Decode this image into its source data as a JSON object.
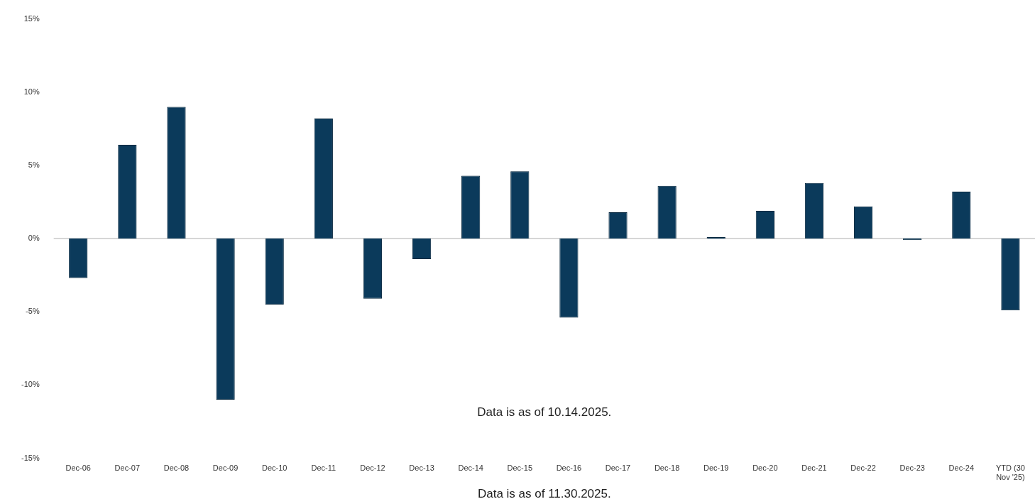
{
  "chart_data": {
    "type": "bar",
    "categories": [
      "Dec-06",
      "Dec-07",
      "Dec-08",
      "Dec-09",
      "Dec-10",
      "Dec-11",
      "Dec-12",
      "Dec-13",
      "Dec-14",
      "Dec-15",
      "Dec-16",
      "Dec-17",
      "Dec-18",
      "Dec-19",
      "Dec-20",
      "Dec-21",
      "Dec-22",
      "Dec-23",
      "Dec-24",
      "YTD (30 Nov '25)"
    ],
    "values": [
      -2.7,
      6.4,
      9.0,
      -11.0,
      -4.5,
      8.2,
      -4.1,
      -1.4,
      4.3,
      4.6,
      -5.4,
      1.8,
      3.6,
      0.1,
      1.9,
      3.8,
      2.2,
      -0.1,
      3.2,
      -4.9
    ],
    "color": "#0b3a5b",
    "ylim": [
      -15,
      15
    ],
    "yticks": [
      {
        "value": -15,
        "label": "-15%"
      },
      {
        "value": -10,
        "label": "-10%"
      },
      {
        "value": -5,
        "label": "-5%"
      },
      {
        "value": 0,
        "label": "0%"
      },
      {
        "value": 5,
        "label": "5%"
      },
      {
        "value": 10,
        "label": "10%"
      },
      {
        "value": 15,
        "label": "15%"
      }
    ],
    "grid": false,
    "ref_lines": [
      {
        "axis": "y",
        "value": 0,
        "color": "#c8c8c8"
      }
    ],
    "legend": false,
    "annotations": [
      "Data is as of 10.14.2025.",
      "Data is as of 11.30.2025."
    ]
  }
}
